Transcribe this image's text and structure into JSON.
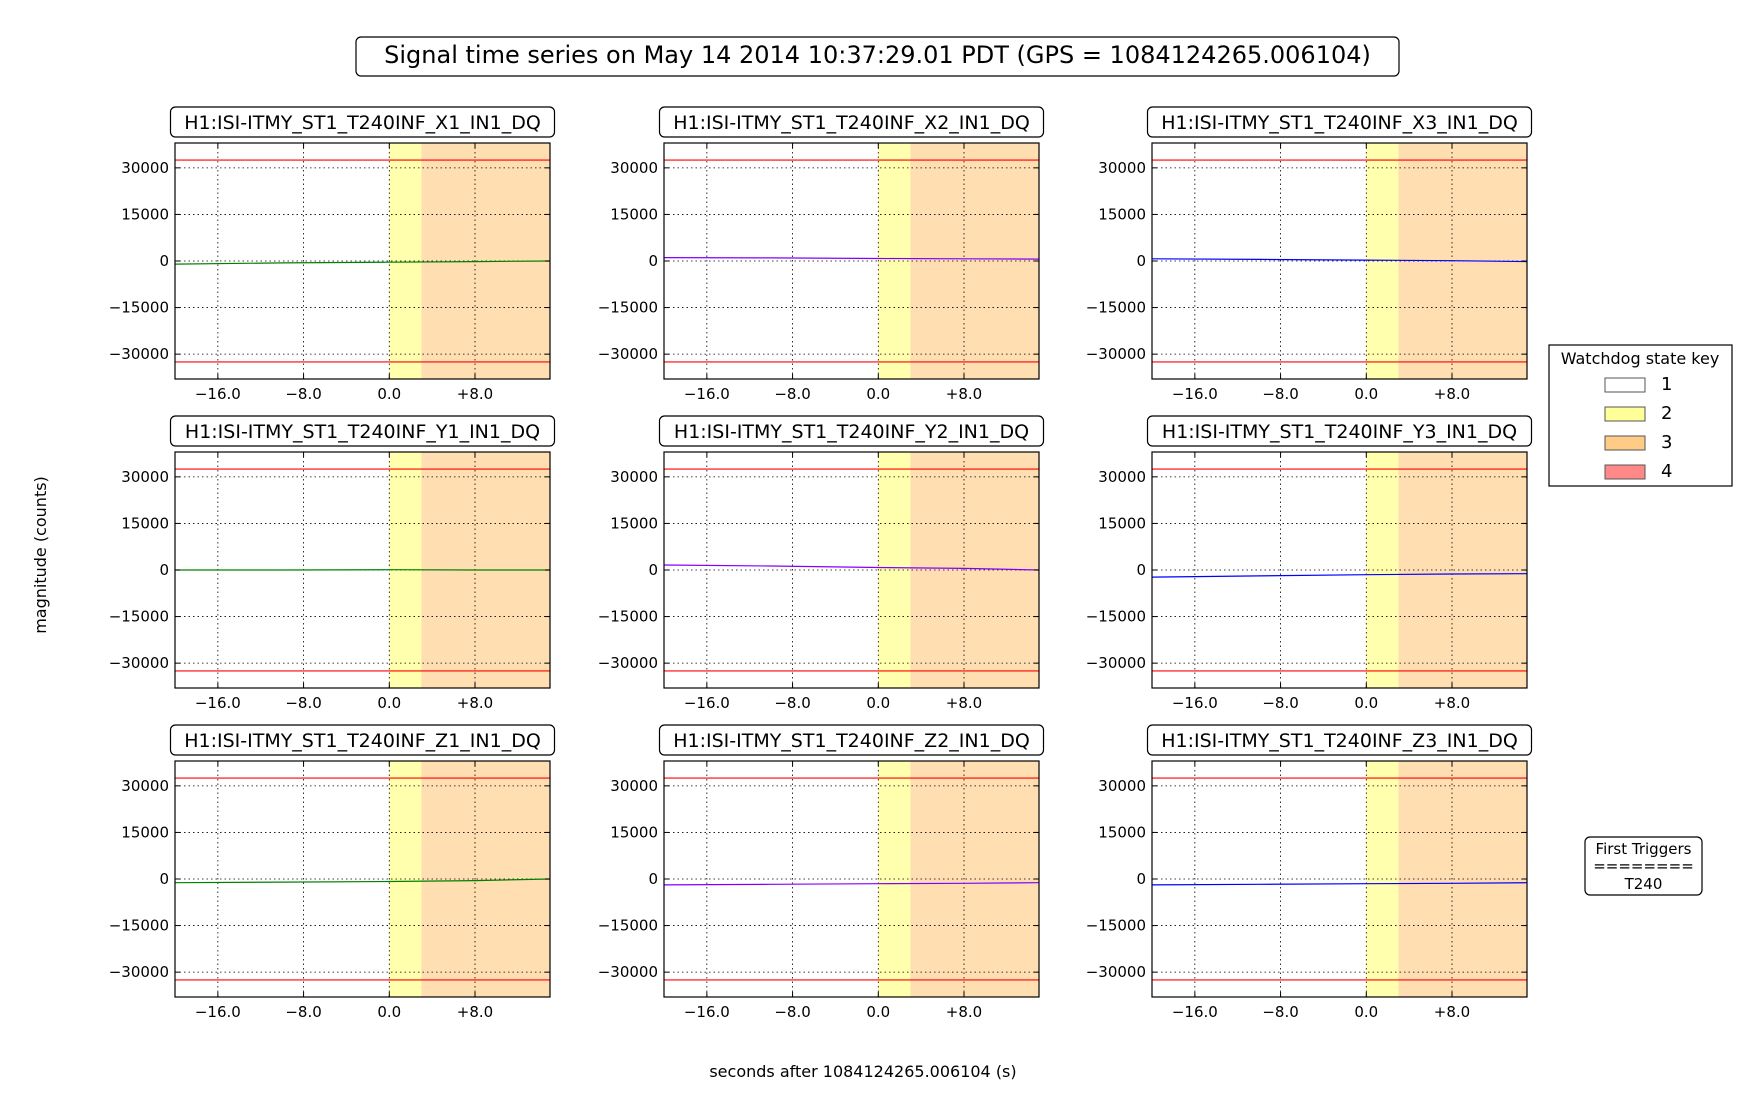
{
  "figure": {
    "title": "Signal time series on May 14 2014 10:37:29.01 PDT (GPS = 1084124265.006104)",
    "xlabel": "seconds after 1084124265.006104 (s)",
    "ylabel": "magnitude (counts)"
  },
  "legend": {
    "title": "Watchdog state key",
    "items": [
      {
        "label": "1",
        "color": "#ffffff"
      },
      {
        "label": "2",
        "color": "#ffff99"
      },
      {
        "label": "3",
        "color": "#ffcc88"
      },
      {
        "label": "4",
        "color": "#ff8888"
      }
    ]
  },
  "first_triggers": {
    "line1": "First Triggers",
    "line2": "========",
    "line3": "T240"
  },
  "chart_data": {
    "type": "line",
    "xlim": [
      -20,
      15
    ],
    "ylim": [
      -38000,
      38000
    ],
    "xticks": [
      -16,
      -8,
      0,
      8
    ],
    "xtick_labels": [
      "−16.0",
      "−8.0",
      "0.0",
      "+8.0"
    ],
    "yticks": [
      30000,
      15000,
      0,
      -15000,
      -30000
    ],
    "ytick_labels": [
      "30000",
      "15000",
      "0",
      "−15000",
      "−30000"
    ],
    "grid": true,
    "threshold_lines": [
      32500,
      -32500
    ],
    "threshold_color": "#ff0000",
    "state_spans": [
      {
        "state": "2",
        "x0": 0,
        "x1": 3
      },
      {
        "state": "3",
        "x0": 3,
        "x1": 15
      }
    ],
    "panels": [
      {
        "title": "H1:ISI-ITMY_ST1_T240INF_X1_IN1_DQ",
        "color": "#008000",
        "x": [
          -20,
          -10,
          0,
          8,
          15
        ],
        "y": [
          -1000,
          -600,
          -400,
          -200,
          0
        ]
      },
      {
        "title": "H1:ISI-ITMY_ST1_T240INF_X2_IN1_DQ",
        "color": "#8000ff",
        "x": [
          -20,
          -10,
          0,
          8,
          15
        ],
        "y": [
          1100,
          1000,
          800,
          700,
          600
        ]
      },
      {
        "title": "H1:ISI-ITMY_ST1_T240INF_X3_IN1_DQ",
        "color": "#0000ff",
        "x": [
          -20,
          -10,
          0,
          8,
          15
        ],
        "y": [
          700,
          500,
          300,
          100,
          -200
        ]
      },
      {
        "title": "H1:ISI-ITMY_ST1_T240INF_Y1_IN1_DQ",
        "color": "#008000",
        "x": [
          -20,
          -10,
          0,
          8,
          15
        ],
        "y": [
          0,
          0,
          100,
          0,
          0
        ]
      },
      {
        "title": "H1:ISI-ITMY_ST1_T240INF_Y2_IN1_DQ",
        "color": "#8000ff",
        "x": [
          -20,
          -10,
          0,
          8,
          15
        ],
        "y": [
          1600,
          1300,
          800,
          500,
          0
        ]
      },
      {
        "title": "H1:ISI-ITMY_ST1_T240INF_Y3_IN1_DQ",
        "color": "#0000ff",
        "x": [
          -20,
          -10,
          0,
          8,
          15
        ],
        "y": [
          -2300,
          -1900,
          -1500,
          -1300,
          -1200
        ]
      },
      {
        "title": "H1:ISI-ITMY_ST1_T240INF_Z1_IN1_DQ",
        "color": "#008000",
        "x": [
          -20,
          -10,
          0,
          8,
          15
        ],
        "y": [
          -1200,
          -1000,
          -800,
          -500,
          0
        ]
      },
      {
        "title": "H1:ISI-ITMY_ST1_T240INF_Z2_IN1_DQ",
        "color": "#8000ff",
        "x": [
          -20,
          -10,
          0,
          8,
          15
        ],
        "y": [
          -1900,
          -1700,
          -1500,
          -1400,
          -1200
        ]
      },
      {
        "title": "H1:ISI-ITMY_ST1_T240INF_Z3_IN1_DQ",
        "color": "#0000ff",
        "x": [
          -20,
          -10,
          0,
          8,
          15
        ],
        "y": [
          -1900,
          -1700,
          -1500,
          -1400,
          -1200
        ]
      }
    ]
  }
}
